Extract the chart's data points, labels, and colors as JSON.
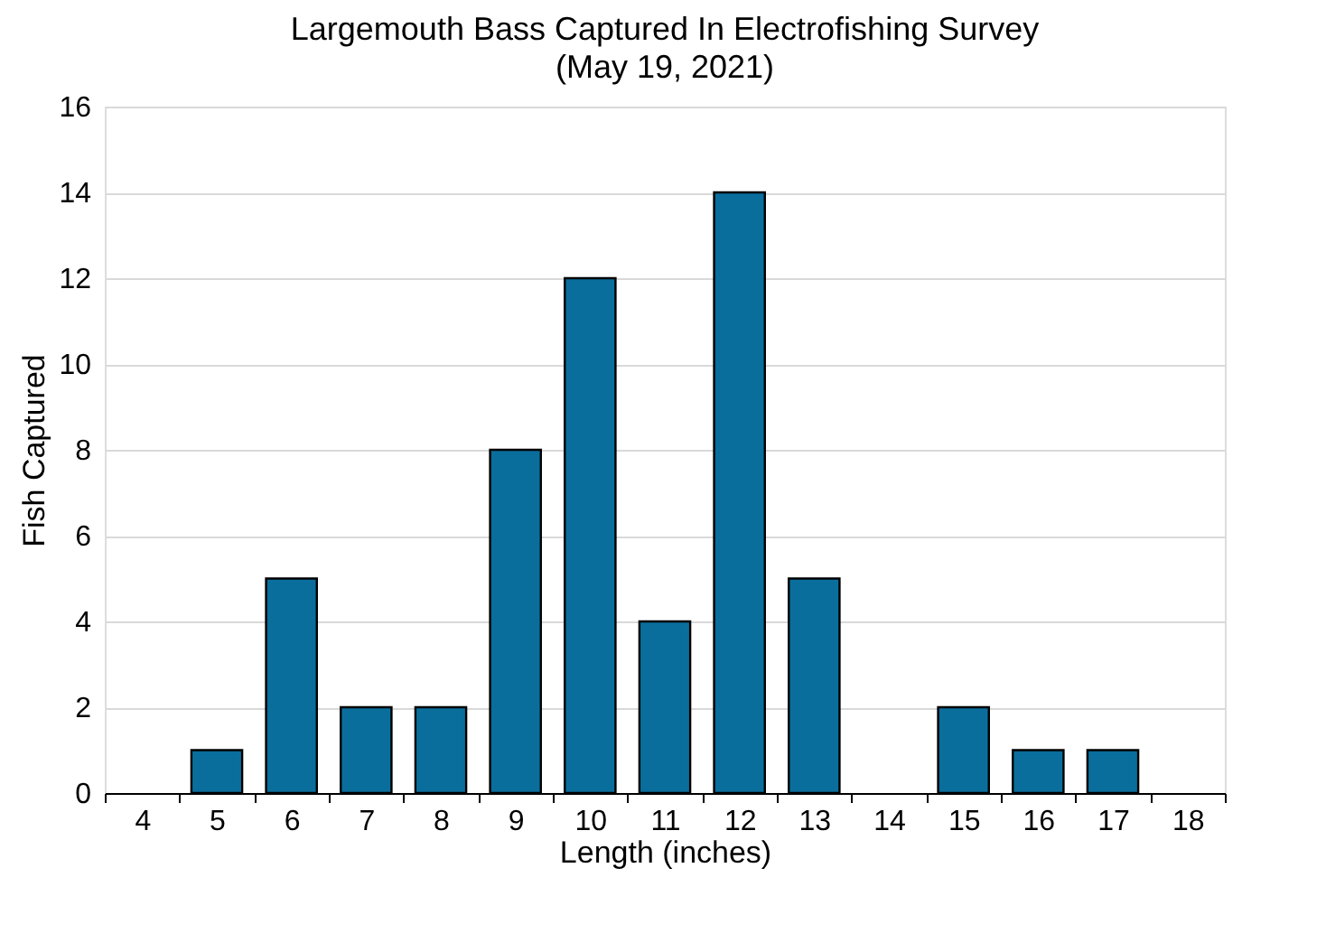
{
  "chart_data": {
    "type": "bar",
    "title": "Largemouth Bass Captured In Electrofishing Survey",
    "subtitle": "(May 19, 2021)",
    "xlabel": "Length (inches)",
    "ylabel": "Fish Captured",
    "categories": [
      "4",
      "5",
      "6",
      "7",
      "8",
      "9",
      "10",
      "11",
      "12",
      "13",
      "14",
      "15",
      "16",
      "17",
      "18"
    ],
    "values": [
      0,
      1,
      5,
      2,
      2,
      8,
      12,
      4,
      14,
      5,
      0,
      2,
      1,
      1,
      0
    ],
    "color": "#0a6e9c",
    "ylim": [
      0,
      16
    ],
    "yticks": [
      0,
      2,
      4,
      6,
      8,
      10,
      12,
      14,
      16
    ],
    "grid": "y"
  }
}
